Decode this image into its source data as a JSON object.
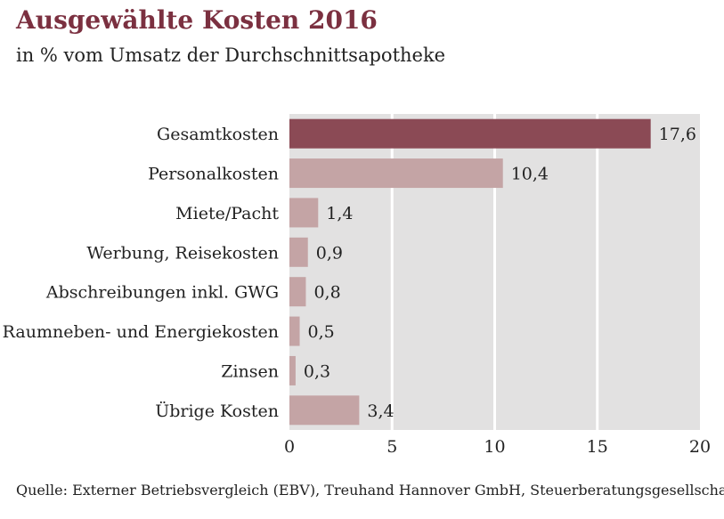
{
  "header": {
    "title": "Ausgewählte Kosten 2016",
    "subtitle": "in % vom Umsatz der Durchschnittsapotheke"
  },
  "footer": {
    "source": "Quelle: Externer Betriebsvergleich (EBV), Treuhand Hannover GmbH, Steuerberatungsgesellschaft"
  },
  "colors": {
    "title": "#7b3040",
    "highlight_bar": "#8b4a55",
    "bar": "#c4a4a5",
    "plot_background": "#e2e1e1",
    "gridline": "#ffffff"
  },
  "chart_data": {
    "type": "bar",
    "orientation": "horizontal",
    "title": "Ausgewählte Kosten 2016",
    "subtitle": "in % vom Umsatz der Durchschnittsapotheke",
    "categories": [
      "Gesamtkosten",
      "Personalkosten",
      "Miete/Pacht",
      "Werbung, Reisekosten",
      "Abschreibungen inkl. GWG",
      "Raumneben- und Energiekosten",
      "Zinsen",
      "Übrige Kosten"
    ],
    "values": [
      17.6,
      10.4,
      1.4,
      0.9,
      0.8,
      0.5,
      0.3,
      3.4
    ],
    "value_labels": [
      "17,6",
      "10,4",
      "1,4",
      "0,9",
      "0,8",
      "0,5",
      "0,3",
      "3,4"
    ],
    "highlighted_category": "Gesamtkosten",
    "xlim": [
      0,
      20
    ],
    "xticks": [
      0,
      5,
      10,
      15,
      20
    ],
    "grid": true,
    "legend": "none"
  }
}
